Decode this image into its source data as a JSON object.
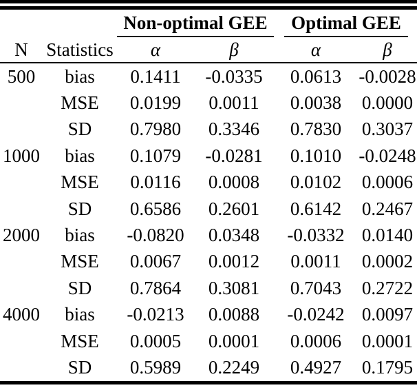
{
  "page": {
    "background_color": "#ffffff",
    "text_color": "#000000",
    "rule_color": "#000000"
  },
  "table": {
    "group_headers": [
      "Non-optimal GEE",
      "Optimal GEE"
    ],
    "col_headers": [
      "N",
      "Statistics",
      "α",
      "β",
      "α",
      "β"
    ],
    "rows": [
      {
        "n": "500",
        "stat": "bias",
        "values": [
          "0.1411",
          "-0.0335",
          "0.0613",
          "-0.0028"
        ]
      },
      {
        "n": "",
        "stat": "MSE",
        "values": [
          "0.0199",
          "0.0011",
          "0.0038",
          "0.0000"
        ]
      },
      {
        "n": "",
        "stat": "SD",
        "values": [
          "0.7980",
          "0.3346",
          "0.7830",
          "0.3037"
        ]
      },
      {
        "n": "1000",
        "stat": "bias",
        "values": [
          "0.1079",
          "-0.0281",
          "0.1010",
          "-0.0248"
        ]
      },
      {
        "n": "",
        "stat": "MSE",
        "values": [
          "0.0116",
          "0.0008",
          "0.0102",
          "0.0006"
        ]
      },
      {
        "n": "",
        "stat": "SD",
        "values": [
          "0.6586",
          "0.2601",
          "0.6142",
          "0.2467"
        ]
      },
      {
        "n": "2000",
        "stat": "bias",
        "values": [
          "-0.0820",
          "0.0348",
          "-0.0332",
          "0.0140"
        ]
      },
      {
        "n": "",
        "stat": "MSE",
        "values": [
          "0.0067",
          "0.0012",
          "0.0011",
          "0.0002"
        ]
      },
      {
        "n": "",
        "stat": "SD",
        "values": [
          "0.7864",
          "0.3081",
          "0.7043",
          "0.2722"
        ]
      },
      {
        "n": "4000",
        "stat": "bias",
        "values": [
          "-0.0213",
          "0.0088",
          "-0.0242",
          "0.0097"
        ]
      },
      {
        "n": "",
        "stat": "MSE",
        "values": [
          "0.0005",
          "0.0001",
          "0.0006",
          "0.0001"
        ]
      },
      {
        "n": "",
        "stat": "SD",
        "values": [
          "0.5989",
          "0.2249",
          "0.4927",
          "0.1795"
        ]
      }
    ]
  }
}
